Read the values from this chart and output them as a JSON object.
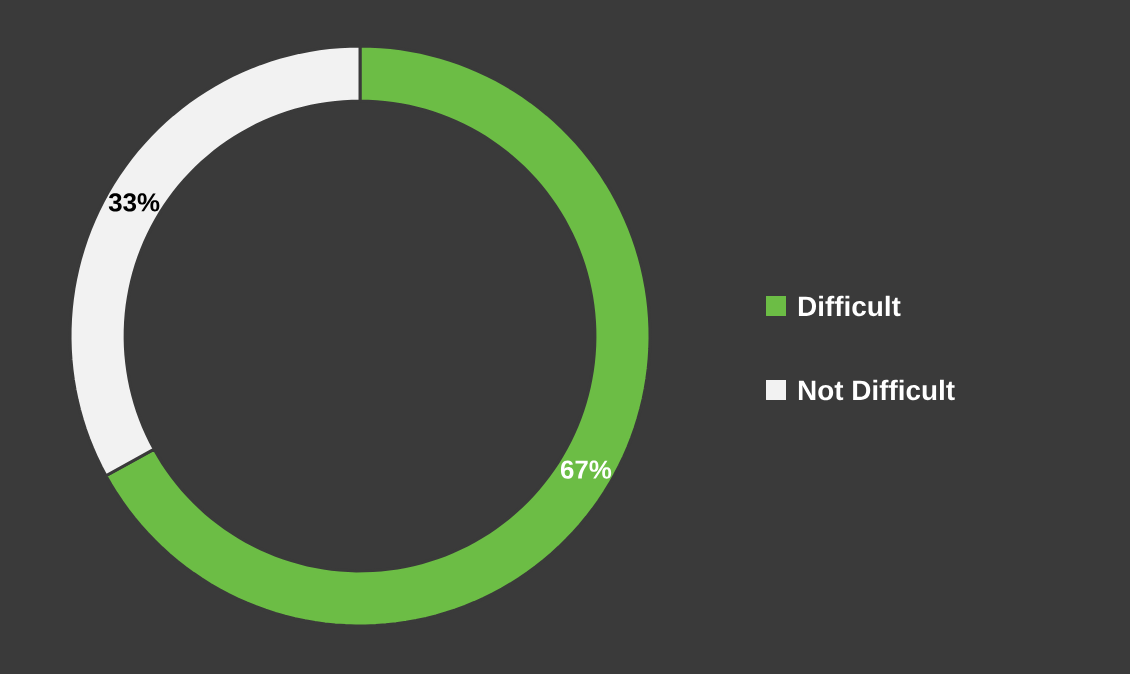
{
  "chart_data": {
    "type": "donut",
    "categories": [
      "Difficult",
      "Not Difficult"
    ],
    "values": [
      67,
      33
    ],
    "value_labels": [
      "67%",
      "33%"
    ],
    "colors": [
      "#6cbd45",
      "#f2f2f2"
    ],
    "legend": "right"
  }
}
